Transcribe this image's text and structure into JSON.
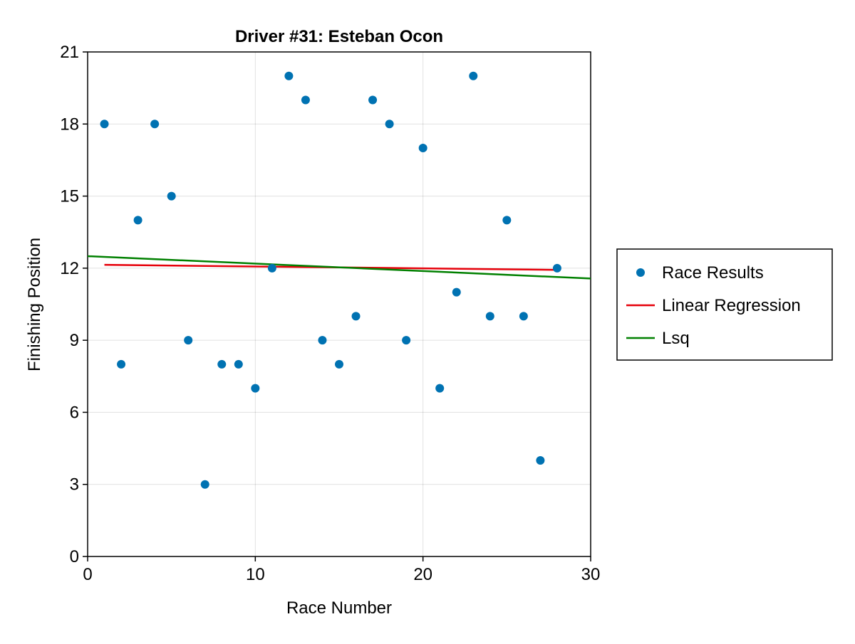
{
  "chart_data": {
    "type": "scatter",
    "title": "Driver #31: Esteban Ocon",
    "xlabel": "Race Number",
    "ylabel": "Finishing Position",
    "xlim": [
      0,
      30
    ],
    "ylim": [
      0,
      21
    ],
    "xticks": [
      0,
      10,
      20,
      30
    ],
    "yticks": [
      0,
      3,
      6,
      9,
      12,
      15,
      18,
      21
    ],
    "grid": true,
    "legend_position": "right",
    "series": [
      {
        "name": "Race Results",
        "kind": "scatter",
        "color": "#0072b2",
        "x": [
          1,
          2,
          3,
          4,
          5,
          6,
          7,
          8,
          9,
          10,
          11,
          12,
          13,
          14,
          15,
          16,
          17,
          18,
          19,
          20,
          21,
          22,
          23,
          24,
          25,
          26,
          27,
          28
        ],
        "y": [
          18,
          8,
          14,
          18,
          15,
          9,
          3,
          8,
          8,
          7,
          12,
          20,
          19,
          9,
          8,
          10,
          19,
          18,
          9,
          17,
          7,
          11,
          20,
          10,
          14,
          10,
          4,
          12
        ]
      },
      {
        "name": "Linear Regression",
        "kind": "line",
        "color": "#e6000a",
        "x": [
          1,
          28
        ],
        "y": [
          12.14,
          11.93
        ]
      },
      {
        "name": "Lsq",
        "kind": "line",
        "color": "#008000",
        "x": [
          0,
          30
        ],
        "y": [
          12.5,
          11.57
        ]
      }
    ]
  }
}
